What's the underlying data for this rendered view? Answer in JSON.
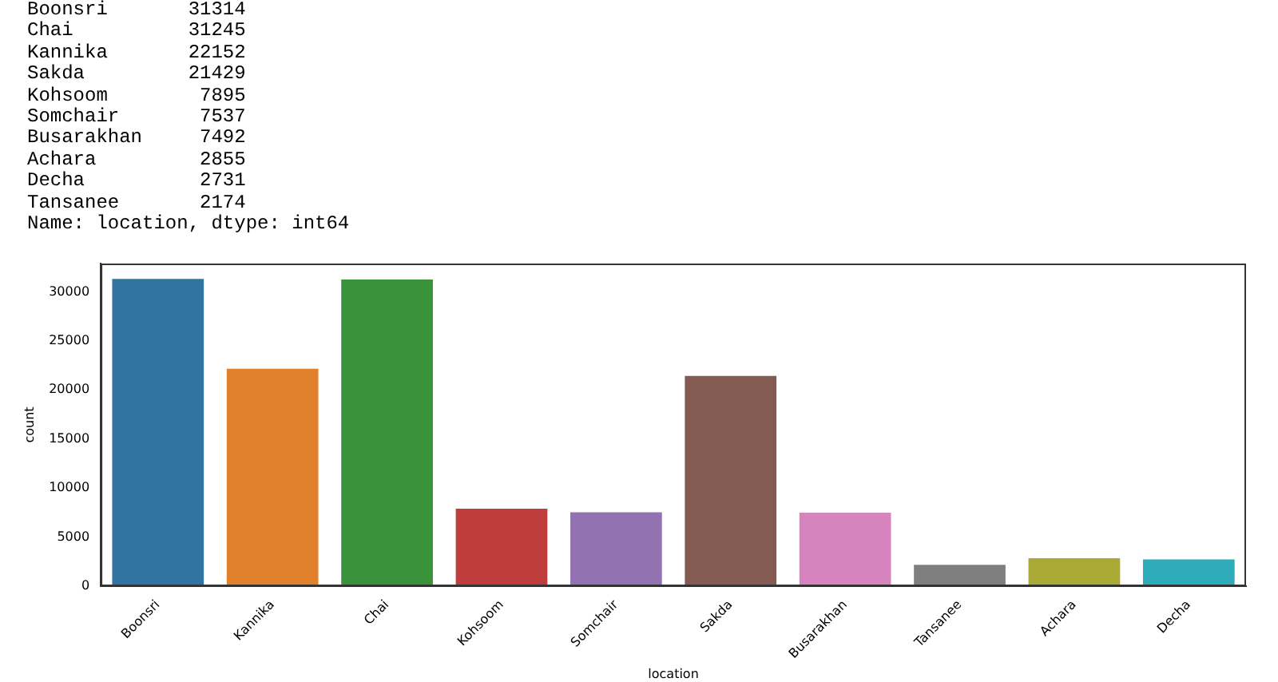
{
  "chart_data": {
    "type": "bar",
    "annotations": [
      "Boonsri       31314",
      "Chai          31245",
      "Kannika       22152",
      "Sakda         21429",
      "Kohsoom        7895",
      "Somchair       7537",
      "Busarakhan     7492",
      "Achara         2855",
      "Decha          2731",
      "Tansanee       2174",
      "Name: location, dtype: int64"
    ],
    "categories": [
      "Boonsri",
      "Kannika",
      "Chai",
      "Kohsoom",
      "Somchair",
      "Sakda",
      "Busarakhan",
      "Tansanee",
      "Achara",
      "Decha"
    ],
    "values": [
      31314,
      22152,
      31245,
      7895,
      7537,
      21429,
      7492,
      2174,
      2855,
      2731
    ],
    "colors": [
      "#3274a1",
      "#e1812c",
      "#3a923a",
      "#c03d3e",
      "#9372b2",
      "#845b53",
      "#d684bd",
      "#7f7f7f",
      "#a9aa35",
      "#2eabb8"
    ],
    "xlabel": "location",
    "ylabel": "count",
    "ylim": [
      0,
      32880
    ],
    "yticks": [
      0,
      5000,
      10000,
      15000,
      20000,
      25000,
      30000
    ],
    "grid": false,
    "legend": false
  }
}
